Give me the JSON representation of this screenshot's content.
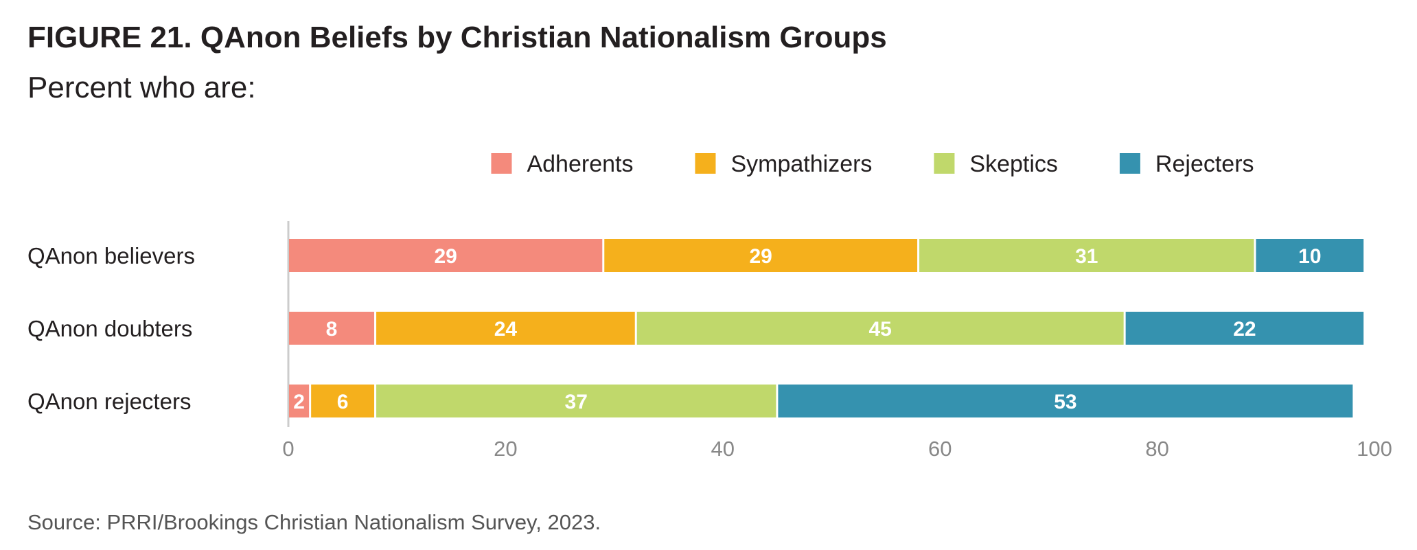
{
  "figure": {
    "title": "FIGURE 21. QAnon Beliefs by Christian Nationalism Groups",
    "subtitle": "Percent who are:",
    "source": "Source: PRRI/Brookings Christian Nationalism Survey, 2023."
  },
  "chart_data": {
    "type": "bar",
    "orientation": "horizontal",
    "stacked": true,
    "title": "FIGURE 21. QAnon Beliefs by Christian Nationalism Groups",
    "subtitle": "Percent who are:",
    "categories": [
      "QAnon believers",
      "QAnon doubters",
      "QAnon rejecters"
    ],
    "series": [
      {
        "name": "Adherents",
        "color": "#f48a7c",
        "values": [
          29,
          8,
          2
        ]
      },
      {
        "name": "Sympathizers",
        "color": "#f5b01c",
        "values": [
          29,
          24,
          6
        ]
      },
      {
        "name": "Skeptics",
        "color": "#c0d86b",
        "values": [
          31,
          45,
          37
        ]
      },
      {
        "name": "Rejecters",
        "color": "#3592af",
        "values": [
          10,
          22,
          53
        ]
      }
    ],
    "xlim": [
      0,
      100
    ],
    "xticks": [
      0,
      20,
      40,
      60,
      80,
      100
    ],
    "grid": false,
    "legend_position": "top",
    "data_labels": true,
    "label_color": "#ffffff",
    "tick_label_color": "#888888",
    "axis_line_color": "#cccccc"
  }
}
